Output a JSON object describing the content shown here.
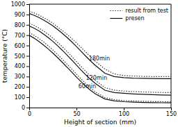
{
  "chart_data": {
    "type": "line",
    "x_label": "Height of section (mm)",
    "y_label": "temperature (°C)",
    "xlim": [
      0,
      150
    ],
    "ylim": [
      0,
      1000
    ],
    "xticks": [
      0,
      50,
      100,
      150
    ],
    "yticks": [
      0,
      100,
      200,
      300,
      400,
      500,
      600,
      700,
      800,
      900,
      1000
    ],
    "legend": "upper right",
    "x": [
      0,
      5,
      10,
      15,
      20,
      25,
      30,
      35,
      40,
      45,
      50,
      55,
      60,
      65,
      70,
      80,
      90,
      100,
      110,
      120,
      130,
      140,
      150
    ],
    "series": [
      {
        "name": "result from test",
        "color": "#333333",
        "line_style": "dotted",
        "values": [
          930,
          915,
          895,
          870,
          845,
          815,
          780,
          745,
          708,
          668,
          625,
          580,
          535,
          490,
          448,
          373,
          325,
          310,
          305,
          302,
          300,
          300,
          300
        ]
      },
      {
        "name": "presen",
        "color": "#111111",
        "line_style": "solid",
        "values": [
          910,
          893,
          872,
          848,
          820,
          790,
          755,
          718,
          678,
          636,
          590,
          543,
          495,
          450,
          408,
          332,
          300,
          290,
          285,
          283,
          281,
          280,
          279
        ]
      },
      {
        "name": "result from test",
        "color": "#333333",
        "line_style": "dotted",
        "values": [
          815,
          795,
          771,
          742,
          709,
          672,
          631,
          588,
          542,
          495,
          445,
          396,
          348,
          303,
          262,
          193,
          168,
          160,
          155,
          151,
          148,
          146,
          145
        ]
      },
      {
        "name": "presen",
        "color": "#111111",
        "line_style": "solid",
        "values": [
          790,
          768,
          743,
          712,
          678,
          640,
          598,
          554,
          507,
          460,
          410,
          362,
          315,
          272,
          233,
          168,
          145,
          138,
          132,
          128,
          125,
          122,
          120
        ]
      },
      {
        "name": "result from test",
        "color": "#333333",
        "line_style": "dotted",
        "values": [
          725,
          700,
          670,
          636,
          598,
          557,
          513,
          467,
          420,
          372,
          323,
          275,
          230,
          188,
          152,
          97,
          77,
          68,
          64,
          61,
          59,
          57,
          56
        ]
      },
      {
        "name": "presen",
        "color": "#111111",
        "line_style": "solid",
        "values": [
          700,
          672,
          641,
          606,
          568,
          527,
          483,
          438,
          390,
          343,
          295,
          249,
          205,
          166,
          133,
          83,
          65,
          57,
          53,
          50,
          48,
          47,
          46
        ]
      }
    ],
    "annotations": [
      {
        "text": "180min",
        "x": 63,
        "y": 455
      },
      {
        "text": "120min",
        "x": 60,
        "y": 270
      },
      {
        "text": "60min",
        "x": 52,
        "y": 185
      }
    ]
  }
}
